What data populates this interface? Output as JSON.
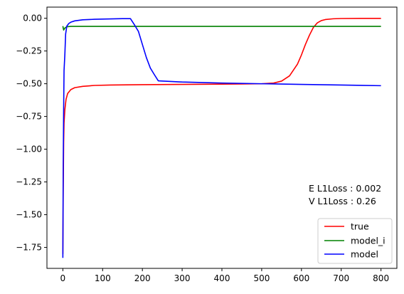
{
  "chart_data": {
    "type": "line",
    "title": "",
    "xlabel": "",
    "ylabel": "",
    "xlim": [
      -40,
      840
    ],
    "ylim": [
      -1.91,
      0.085
    ],
    "xticks": [
      0,
      100,
      200,
      300,
      400,
      500,
      600,
      700,
      800
    ],
    "xtick_labels": [
      "0",
      "100",
      "200",
      "300",
      "400",
      "500",
      "600",
      "700",
      "800"
    ],
    "yticks": [
      0.0,
      -0.25,
      -0.5,
      -0.75,
      -1.0,
      -1.25,
      -1.5,
      -1.75
    ],
    "ytick_labels": [
      "0.00",
      "−0.25",
      "−0.50",
      "−0.75",
      "−1.00",
      "−1.25",
      "−1.50",
      "−1.75"
    ],
    "grid": false,
    "legend_position": "bottom-right",
    "annotations": [
      "E L1Loss : 0.002",
      "V L1Loss : 0.26"
    ],
    "series": [
      {
        "name": "true",
        "color": "#ff0000",
        "x": [
          0,
          1,
          2,
          3,
          5,
          8,
          12,
          20,
          30,
          50,
          80,
          120,
          200,
          300,
          400,
          450,
          500,
          530,
          550,
          570,
          590,
          600,
          610,
          620,
          630,
          640,
          650,
          660,
          680,
          700,
          750,
          800
        ],
        "y": [
          -1.8,
          -1.3,
          -0.95,
          -0.8,
          -0.7,
          -0.62,
          -0.575,
          -0.545,
          -0.53,
          -0.52,
          -0.513,
          -0.51,
          -0.507,
          -0.505,
          -0.503,
          -0.502,
          -0.5,
          -0.495,
          -0.48,
          -0.44,
          -0.35,
          -0.28,
          -0.2,
          -0.13,
          -0.07,
          -0.035,
          -0.018,
          -0.01,
          -0.004,
          -0.002,
          -0.001,
          -0.001
        ]
      },
      {
        "name": "model_i",
        "color": "#008000",
        "x": [
          0,
          2,
          5,
          10,
          20,
          50,
          100,
          200,
          400,
          600,
          800
        ],
        "y": [
          -0.06,
          -0.09,
          -0.075,
          -0.065,
          -0.062,
          -0.062,
          -0.062,
          -0.062,
          -0.062,
          -0.062,
          -0.062
        ]
      },
      {
        "name": "model",
        "color": "#0000ff",
        "x": [
          0,
          1,
          2,
          3,
          5,
          7,
          10,
          15,
          20,
          30,
          50,
          80,
          120,
          150,
          170,
          180,
          190,
          200,
          210,
          220,
          230,
          240,
          300,
          400,
          500,
          600,
          700,
          800
        ],
        "y": [
          -1.83,
          -1.1,
          -0.7,
          -0.4,
          -0.28,
          -0.12,
          -0.06,
          -0.04,
          -0.03,
          -0.02,
          -0.012,
          -0.008,
          -0.005,
          -0.003,
          -0.003,
          -0.05,
          -0.1,
          -0.2,
          -0.3,
          -0.38,
          -0.43,
          -0.478,
          -0.487,
          -0.495,
          -0.5,
          -0.505,
          -0.51,
          -0.515
        ]
      }
    ]
  }
}
